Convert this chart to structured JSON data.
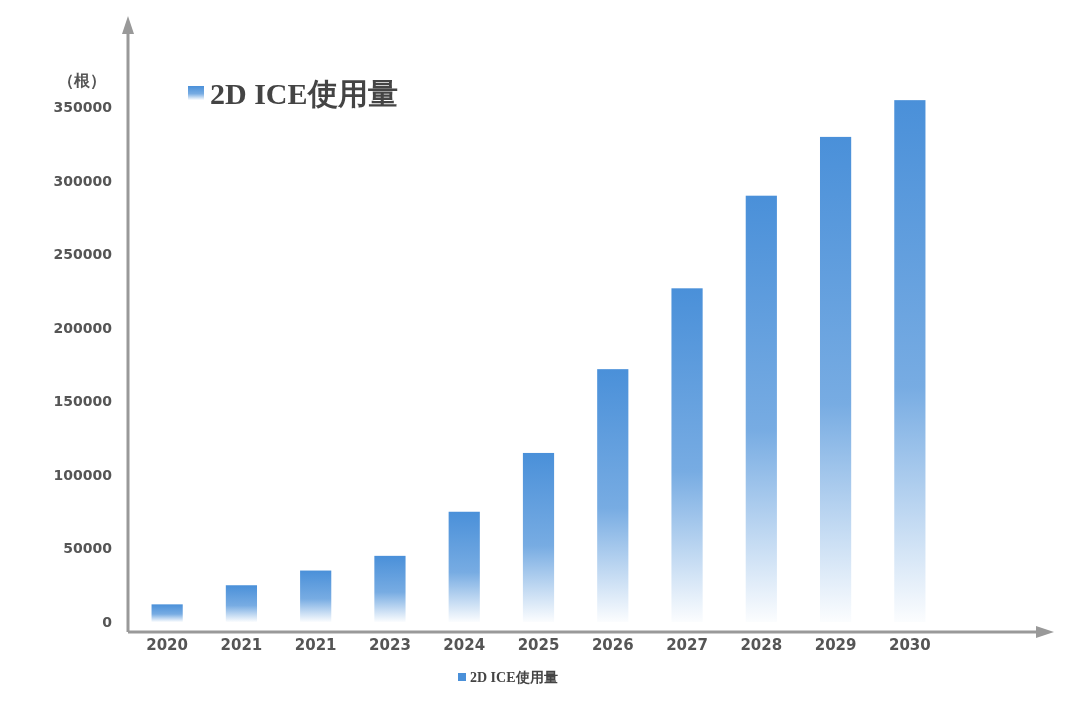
{
  "chart_data": {
    "type": "bar",
    "title": "2D ICE使用量",
    "ylabel": "（根）",
    "categories": [
      "2020",
      "2021",
      "2021",
      "2023",
      "2024",
      "2025",
      "2026",
      "2027",
      "2028",
      "2029",
      "2030"
    ],
    "series": [
      {
        "name": "2D ICE使用量",
        "color": "#4a90d9",
        "values": [
          12000,
          25000,
          35000,
          45000,
          75000,
          115000,
          172000,
          227000,
          290000,
          330000,
          355000
        ]
      }
    ],
    "ylim": [
      0,
      400000
    ],
    "yticks": [
      0,
      50000,
      100000,
      150000,
      200000,
      250000,
      300000,
      350000
    ],
    "grid": false,
    "legend": "bottom"
  }
}
